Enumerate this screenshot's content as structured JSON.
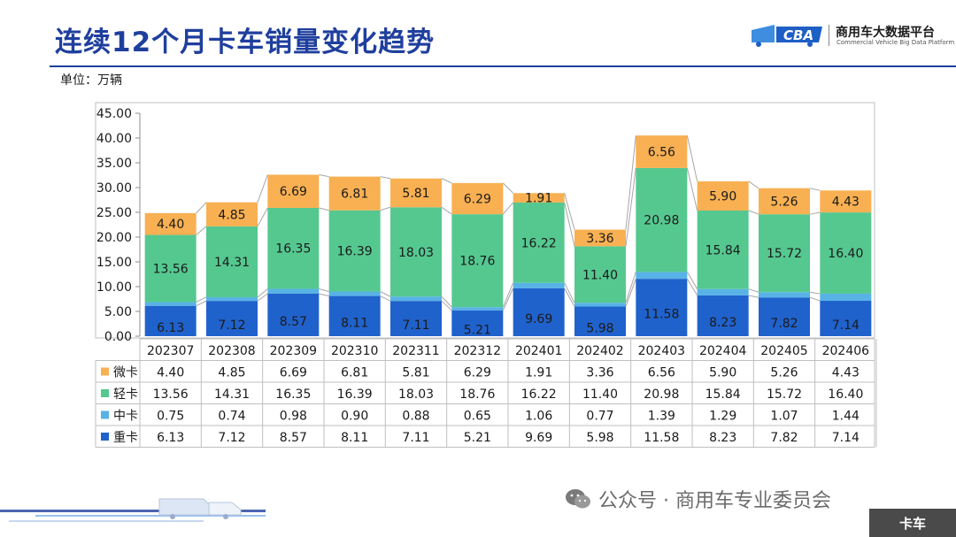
{
  "header": {
    "title": "连续12个月卡车销量变化趋势",
    "logo_text": "商用车大数据平台",
    "logo_sub": "Commercial Vehicle Big Data Platform"
  },
  "unit_label": "单位：万辆",
  "footer": {
    "watermark": "公众号 · 商用车专业委员会",
    "badge": "卡车"
  },
  "colors": {
    "heavy": "#2062cc",
    "medium": "#58b2e6",
    "light": "#55c890",
    "micro": "#f8b052",
    "title": "#1f3f9e"
  },
  "chart_data": {
    "type": "bar",
    "stacked": true,
    "categories": [
      "202307",
      "202308",
      "202309",
      "202310",
      "202311",
      "202312",
      "202401",
      "202402",
      "202403",
      "202404",
      "202405",
      "202406"
    ],
    "series": [
      {
        "name": "重卡",
        "key": "heavy",
        "values": [
          6.13,
          7.12,
          8.57,
          8.11,
          7.11,
          5.21,
          9.69,
          5.98,
          11.58,
          8.23,
          7.82,
          7.14
        ]
      },
      {
        "name": "中卡",
        "key": "medium",
        "values": [
          0.75,
          0.74,
          0.98,
          0.9,
          0.88,
          0.65,
          1.06,
          0.77,
          1.39,
          1.29,
          1.07,
          1.44
        ]
      },
      {
        "name": "轻卡",
        "key": "light",
        "values": [
          13.56,
          14.31,
          16.35,
          16.39,
          18.03,
          18.76,
          16.22,
          11.4,
          20.98,
          15.84,
          15.72,
          16.4
        ]
      },
      {
        "name": "微卡",
        "key": "micro",
        "values": [
          4.4,
          4.85,
          6.69,
          6.81,
          5.81,
          6.29,
          1.91,
          3.36,
          6.56,
          5.9,
          5.26,
          4.43
        ]
      }
    ],
    "table_order": [
      "微卡",
      "轻卡",
      "中卡",
      "重卡"
    ],
    "yticks": [
      "0.00",
      "5.00",
      "10.00",
      "15.00",
      "20.00",
      "25.00",
      "30.00",
      "35.00",
      "40.00",
      "45.00"
    ],
    "ylim": [
      0,
      45
    ],
    "labeled_series": [
      "重卡",
      "轻卡",
      "微卡"
    ],
    "grid": false
  }
}
